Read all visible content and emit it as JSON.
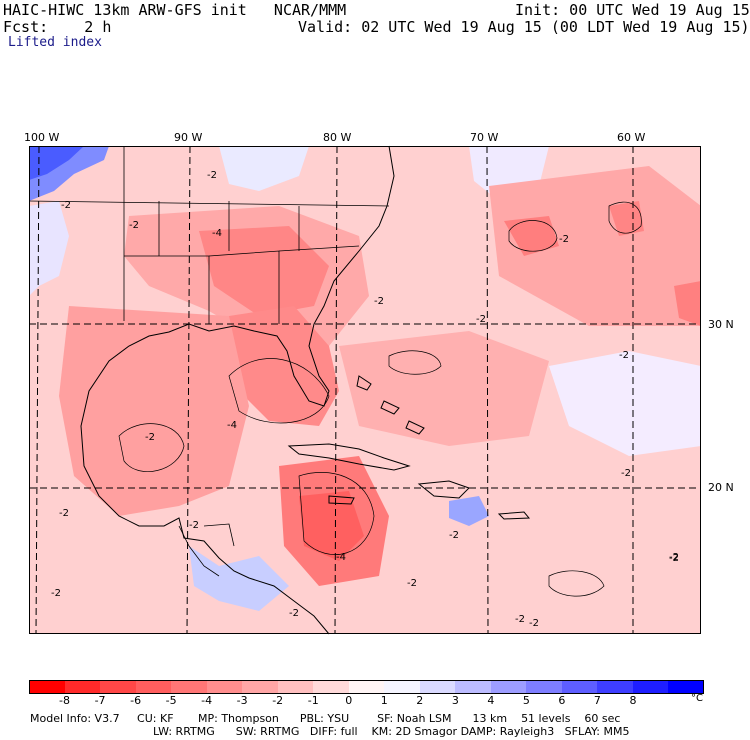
{
  "header": {
    "model_title": "HAIC-HIWC 13km ARW-GFS init   NCAR/MMM",
    "init_label": "Init: 00 UTC Wed 19 Aug 15",
    "fcst_label": "Fcst:    2 h",
    "valid_label": "Valid: 02 UTC Wed 19 Aug 15 (00 LDT Wed 19 Aug 15)",
    "field": "Lifted index"
  },
  "longitude_labels": [
    "100 W",
    "90 W",
    "80 W",
    "70 W",
    "60 W"
  ],
  "latitude_labels": [
    "30 N",
    "20 N"
  ],
  "contour_labels": [
    "-2",
    "-2",
    "-2",
    "-2",
    "-2",
    "-2",
    "-2",
    "-2",
    "-2",
    "-2",
    "-2",
    "-2",
    "-2",
    "-2",
    "-4",
    "-4",
    "-4",
    "-2",
    "-2",
    "-2",
    "-2",
    "-2"
  ],
  "colorbar": {
    "ticks": [
      "-8",
      "-7",
      "-6",
      "-5",
      "-4",
      "-3",
      "-2",
      "-1",
      "0",
      "1",
      "2",
      "3",
      "4",
      "5",
      "6",
      "7",
      "8"
    ],
    "unit": "°C",
    "colors": [
      "#ff0000",
      "#ff2a2a",
      "#ff4747",
      "#ff5e5e",
      "#ff7676",
      "#ff8e8e",
      "#ffa6a6",
      "#ffc0c0",
      "#ffdada",
      "#fff5f5",
      "#f5f5ff",
      "#dadaff",
      "#bcbcff",
      "#9d9dff",
      "#7e7eff",
      "#5e5eff",
      "#3e3eff",
      "#1e1eff",
      "#0000ff"
    ]
  },
  "model_info": {
    "line1": "Model Info: V3.7     CU: KF       MP: Thompson      PBL: YSU        SF: Noah LSM      13 km    51 levels    60 sec",
    "line2": "LW: RRTMG      SW: RRTMG   DIFF: full    KM: 2D Smagor DAMP: Rayleigh3   SFLAY: MM5"
  },
  "colors": {
    "land_bg": "#ffb3b3",
    "ocean_bg": "#ffd6d6",
    "strong": "#ff6e6e",
    "cool": "#d6dcff",
    "blue": "#6b7cff"
  }
}
